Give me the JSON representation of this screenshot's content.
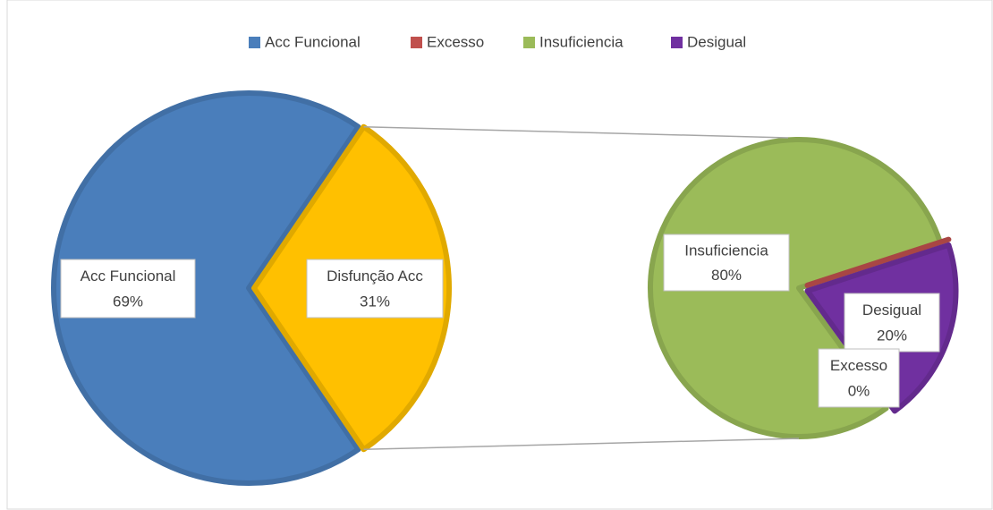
{
  "chart_data": {
    "type": "pie_of_pie",
    "legend": {
      "position": "top",
      "items": [
        {
          "name": "Acc Funcional",
          "color": "#4a7ebb"
        },
        {
          "name": "Excesso",
          "color": "#c0504d"
        },
        {
          "name": "Insuficiencia",
          "color": "#9bbb59"
        },
        {
          "name": "Desigual",
          "color": "#7030a0"
        }
      ]
    },
    "main": {
      "categories": [
        "Acc Funcional",
        "Disfunção Acc"
      ],
      "values": [
        69,
        31
      ],
      "value_labels": [
        "69%",
        "31%"
      ],
      "colors": [
        "#4a7ebb",
        "#ffc000"
      ]
    },
    "secondary": {
      "categories": [
        "Insuficiencia",
        "Excesso",
        "Desigual"
      ],
      "values": [
        80,
        0,
        20
      ],
      "value_labels": [
        "80%",
        "0%",
        "20%"
      ],
      "colors": [
        "#9bbb59",
        "#c0504d",
        "#7030a0"
      ]
    }
  }
}
